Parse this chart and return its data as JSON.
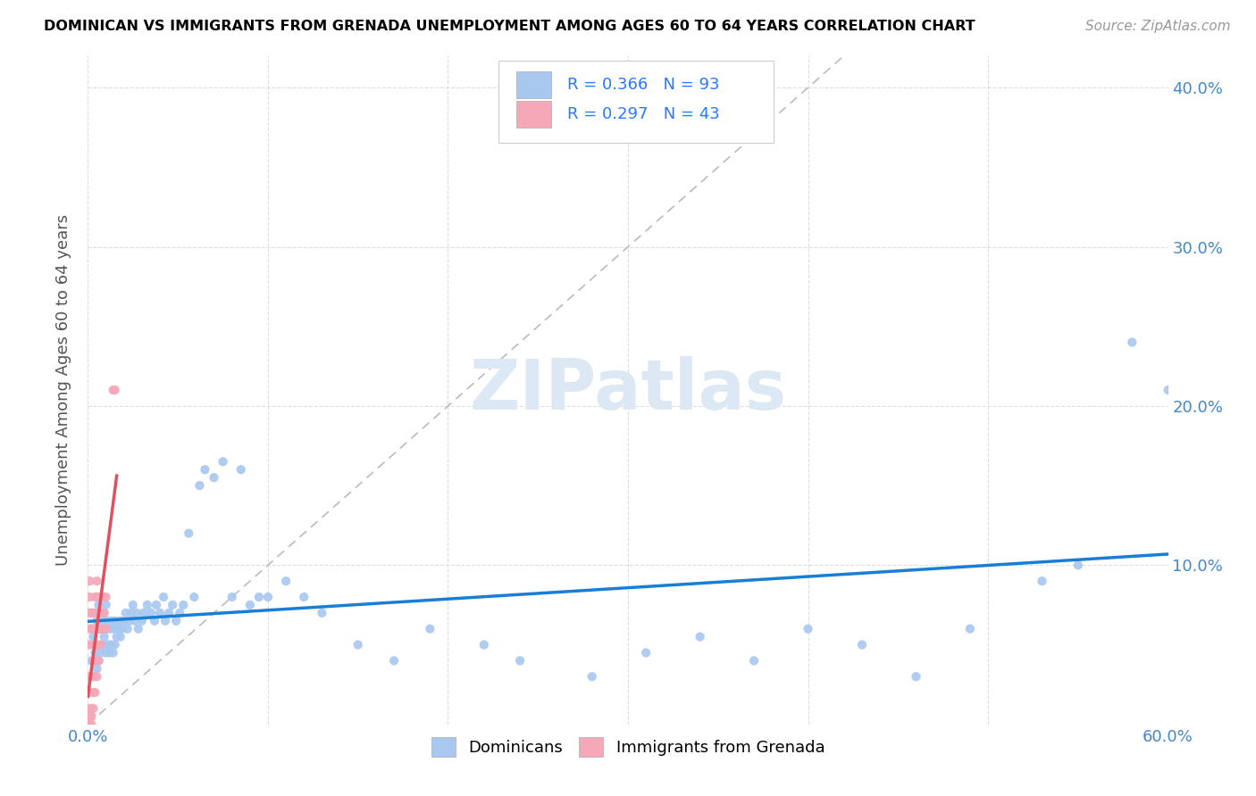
{
  "title": "DOMINICAN VS IMMIGRANTS FROM GRENADA UNEMPLOYMENT AMONG AGES 60 TO 64 YEARS CORRELATION CHART",
  "source": "Source: ZipAtlas.com",
  "ylabel": "Unemployment Among Ages 60 to 64 years",
  "xlim": [
    0.0,
    0.6
  ],
  "ylim": [
    0.0,
    0.42
  ],
  "dominicans_R": 0.366,
  "dominicans_N": 93,
  "grenada_R": 0.297,
  "grenada_N": 43,
  "blue_color": "#a8c8f0",
  "pink_color": "#f4a8b8",
  "blue_line_color": "#1a7fd4",
  "pink_line_color": "#e05060",
  "legend_text_color": "#2979FF",
  "tick_color": "#4488cc",
  "watermark_color": "#dde8f5",
  "dom_x": [
    0.002,
    0.003,
    0.003,
    0.004,
    0.004,
    0.004,
    0.005,
    0.005,
    0.005,
    0.005,
    0.006,
    0.006,
    0.006,
    0.007,
    0.007,
    0.007,
    0.008,
    0.008,
    0.008,
    0.009,
    0.009,
    0.01,
    0.01,
    0.01,
    0.011,
    0.011,
    0.012,
    0.012,
    0.013,
    0.013,
    0.014,
    0.014,
    0.015,
    0.015,
    0.016,
    0.017,
    0.018,
    0.018,
    0.019,
    0.02,
    0.021,
    0.022,
    0.023,
    0.024,
    0.025,
    0.026,
    0.027,
    0.028,
    0.03,
    0.031,
    0.033,
    0.035,
    0.037,
    0.038,
    0.04,
    0.042,
    0.043,
    0.045,
    0.047,
    0.049,
    0.051,
    0.053,
    0.056,
    0.059,
    0.062,
    0.065,
    0.07,
    0.075,
    0.08,
    0.085,
    0.09,
    0.095,
    0.1,
    0.11,
    0.12,
    0.13,
    0.15,
    0.17,
    0.19,
    0.22,
    0.24,
    0.28,
    0.31,
    0.34,
    0.37,
    0.4,
    0.43,
    0.46,
    0.49,
    0.53,
    0.55,
    0.58,
    0.6
  ],
  "dom_y": [
    0.04,
    0.055,
    0.03,
    0.06,
    0.045,
    0.07,
    0.035,
    0.05,
    0.065,
    0.08,
    0.04,
    0.06,
    0.075,
    0.045,
    0.06,
    0.08,
    0.05,
    0.065,
    0.08,
    0.055,
    0.07,
    0.045,
    0.06,
    0.075,
    0.05,
    0.065,
    0.045,
    0.06,
    0.05,
    0.065,
    0.045,
    0.06,
    0.05,
    0.065,
    0.055,
    0.06,
    0.065,
    0.055,
    0.06,
    0.065,
    0.07,
    0.06,
    0.065,
    0.07,
    0.075,
    0.065,
    0.07,
    0.06,
    0.065,
    0.07,
    0.075,
    0.07,
    0.065,
    0.075,
    0.07,
    0.08,
    0.065,
    0.07,
    0.075,
    0.065,
    0.07,
    0.075,
    0.12,
    0.08,
    0.15,
    0.16,
    0.155,
    0.165,
    0.08,
    0.16,
    0.075,
    0.08,
    0.08,
    0.09,
    0.08,
    0.07,
    0.05,
    0.04,
    0.06,
    0.05,
    0.04,
    0.03,
    0.045,
    0.055,
    0.04,
    0.06,
    0.05,
    0.03,
    0.06,
    0.09,
    0.1,
    0.24,
    0.21
  ],
  "gren_x": [
    0.001,
    0.001,
    0.001,
    0.001,
    0.001,
    0.001,
    0.001,
    0.001,
    0.001,
    0.001,
    0.002,
    0.002,
    0.002,
    0.002,
    0.002,
    0.002,
    0.003,
    0.003,
    0.003,
    0.003,
    0.003,
    0.003,
    0.004,
    0.004,
    0.004,
    0.004,
    0.005,
    0.005,
    0.005,
    0.005,
    0.006,
    0.006,
    0.006,
    0.007,
    0.007,
    0.008,
    0.008,
    0.009,
    0.009,
    0.01,
    0.01,
    0.014,
    0.015
  ],
  "gren_y": [
    0.0,
    0.005,
    0.01,
    0.02,
    0.03,
    0.05,
    0.06,
    0.07,
    0.08,
    0.09,
    0.0,
    0.005,
    0.01,
    0.03,
    0.06,
    0.07,
    0.01,
    0.02,
    0.04,
    0.05,
    0.06,
    0.07,
    0.02,
    0.04,
    0.06,
    0.08,
    0.03,
    0.05,
    0.07,
    0.09,
    0.04,
    0.06,
    0.08,
    0.05,
    0.07,
    0.06,
    0.08,
    0.06,
    0.07,
    0.06,
    0.08,
    0.21,
    0.21
  ]
}
